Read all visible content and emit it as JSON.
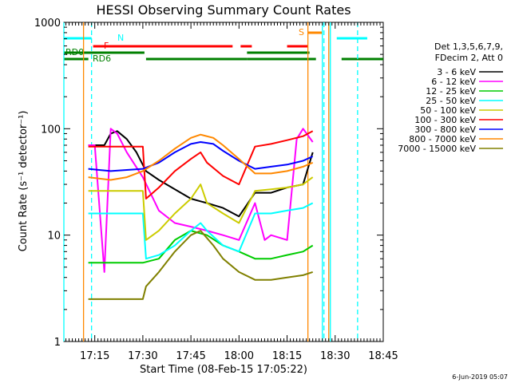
{
  "chart_data": {
    "type": "line",
    "title": "HESSI Observing Summary Count Rates",
    "xlabel": "Start Time (08-Feb-15 17:05:22)",
    "ylabel": "Count Rate (s⁻¹ detector⁻¹)",
    "yscale": "log",
    "ylim": [
      1,
      1000
    ],
    "xlim": [
      "17:05:22",
      "18:45:00"
    ],
    "x_tick_labels": [
      "17:15",
      "17:30",
      "17:45",
      "18:00",
      "18:15",
      "18:30",
      "18:45"
    ],
    "y_tick_labels": [
      "1",
      "10",
      "100",
      "1000"
    ],
    "legend": {
      "header": [
        "Det 1,3,5,6,7,9,",
        "FDecim 2, Att 0"
      ],
      "placement": "right"
    },
    "series": [
      {
        "name": "3 - 6 keV",
        "color": "#000000",
        "x": [
          "17:13:00",
          "17:18:00",
          "17:20:00",
          "17:22:00",
          "17:25:00",
          "17:28:00",
          "17:31:00",
          "17:35:00",
          "17:40:00",
          "17:45:00",
          "17:50:00",
          "17:55:00",
          "18:00:00",
          "18:05:00",
          "18:10:00",
          "18:15:00",
          "18:20:00",
          "18:23:00"
        ],
        "y": [
          70,
          70,
          90,
          95,
          80,
          60,
          40,
          33,
          27,
          22,
          20,
          18,
          15,
          25,
          25,
          28,
          30,
          60
        ]
      },
      {
        "name": "6 - 12 keV",
        "color": "#ff00ff",
        "x": [
          "17:13:00",
          "17:15:00",
          "17:18:00",
          "17:20:00",
          "17:22:00",
          "17:25:00",
          "17:30:00",
          "17:35:00",
          "17:40:00",
          "17:45:00",
          "17:50:00",
          "17:55:00",
          "18:00:00",
          "18:05:00",
          "18:08:00",
          "18:10:00",
          "18:15:00",
          "18:18:00",
          "18:20:00",
          "18:23:00"
        ],
        "y": [
          70,
          70,
          4.5,
          100,
          90,
          60,
          35,
          17,
          13,
          12,
          11,
          10,
          9,
          20,
          9,
          10,
          9,
          80,
          100,
          75
        ]
      },
      {
        "name": "12 - 25 keV",
        "color": "#00cc00",
        "x": [
          "17:13:00",
          "17:20:00",
          "17:30:00",
          "17:35:00",
          "17:40:00",
          "17:45:00",
          "17:50:00",
          "17:55:00",
          "18:00:00",
          "18:05:00",
          "18:10:00",
          "18:15:00",
          "18:20:00",
          "18:23:00"
        ],
        "y": [
          5.5,
          5.5,
          5.5,
          6,
          9,
          11,
          10,
          8,
          7,
          6,
          6,
          6.5,
          7,
          8
        ]
      },
      {
        "name": "25 - 50 keV",
        "color": "#00ffff",
        "x": [
          "17:13:00",
          "17:20:00",
          "17:30:00",
          "17:31:00",
          "17:35:00",
          "17:40:00",
          "17:45:00",
          "17:48:00",
          "17:50:00",
          "17:55:00",
          "18:00:00",
          "18:05:00",
          "18:10:00",
          "18:15:00",
          "18:20:00",
          "18:23:00"
        ],
        "y": [
          16,
          16,
          16,
          6,
          6.5,
          8,
          11,
          13,
          11,
          8,
          7,
          16,
          16,
          17,
          18,
          20
        ]
      },
      {
        "name": "50 - 100 keV",
        "color": "#cccc00",
        "x": [
          "17:13:00",
          "17:20:00",
          "17:30:00",
          "17:31:00",
          "17:35:00",
          "17:40:00",
          "17:45:00",
          "17:48:00",
          "17:50:00",
          "17:55:00",
          "18:00:00",
          "18:05:00",
          "18:10:00",
          "18:15:00",
          "18:20:00",
          "18:23:00"
        ],
        "y": [
          26,
          26,
          26,
          9,
          11,
          16,
          22,
          30,
          20,
          16,
          13,
          26,
          27,
          28,
          30,
          35
        ]
      },
      {
        "name": "100 - 300 keV",
        "color": "#ff0000",
        "x": [
          "17:13:00",
          "17:20:00",
          "17:30:00",
          "17:31:00",
          "17:35:00",
          "17:40:00",
          "17:45:00",
          "17:48:00",
          "17:50:00",
          "17:55:00",
          "18:00:00",
          "18:05:00",
          "18:10:00",
          "18:15:00",
          "18:20:00",
          "18:23:00"
        ],
        "y": [
          68,
          68,
          68,
          22,
          28,
          40,
          52,
          60,
          48,
          36,
          30,
          68,
          72,
          78,
          85,
          95
        ]
      },
      {
        "name": "300 - 800 keV",
        "color": "#0000ff",
        "x": [
          "17:13:00",
          "17:20:00",
          "17:30:00",
          "17:35:00",
          "17:40:00",
          "17:45:00",
          "17:48:00",
          "17:52:00",
          "17:55:00",
          "18:00:00",
          "18:05:00",
          "18:10:00",
          "18:15:00",
          "18:20:00",
          "18:23:00"
        ],
        "y": [
          42,
          40,
          42,
          48,
          60,
          72,
          75,
          72,
          62,
          50,
          42,
          44,
          46,
          50,
          55
        ]
      },
      {
        "name": "800 - 7000 keV",
        "color": "#ff8800",
        "x": [
          "17:13:00",
          "17:20:00",
          "17:25:00",
          "17:30:00",
          "17:35:00",
          "17:40:00",
          "17:45:00",
          "17:48:00",
          "17:52:00",
          "17:55:00",
          "18:00:00",
          "18:05:00",
          "18:10:00",
          "18:15:00",
          "18:20:00",
          "18:23:00"
        ],
        "y": [
          35,
          33,
          35,
          40,
          50,
          65,
          82,
          88,
          82,
          70,
          52,
          38,
          38,
          40,
          44,
          48
        ]
      },
      {
        "name": "7000 - 15000 keV",
        "color": "#808000",
        "x": [
          "17:13:00",
          "17:20:00",
          "17:30:00",
          "17:31:00",
          "17:35:00",
          "17:40:00",
          "17:45:00",
          "17:48:00",
          "17:52:00",
          "17:55:00",
          "18:00:00",
          "18:05:00",
          "18:10:00",
          "18:15:00",
          "18:20:00",
          "18:23:00"
        ],
        "y": [
          2.5,
          2.5,
          2.5,
          3.3,
          4.5,
          7,
          10,
          11,
          8,
          6,
          4.5,
          3.8,
          3.8,
          4,
          4.2,
          4.5
        ]
      }
    ],
    "annotations": {
      "labels": [
        {
          "text": "N",
          "color": "#00ffff"
        },
        {
          "text": "F",
          "color": "#ff0000"
        },
        {
          "text": "S",
          "color": "#ff8800"
        },
        {
          "text": "RD0",
          "color": "#008000"
        },
        {
          "text": "RD6",
          "color": "#008000"
        }
      ],
      "flag_bars": [
        {
          "label": "N",
          "color": "#00ffff",
          "intervals": [
            [
              "17:05:22",
              "17:14:00"
            ],
            [
              "18:30:30",
              "18:40:00"
            ]
          ]
        },
        {
          "label": "F",
          "color": "#ff0000",
          "intervals": [
            [
              "17:14:30",
              "17:58:00"
            ],
            [
              "18:00:30",
              "18:04:00"
            ],
            [
              "18:15:00",
              "18:21:30"
            ]
          ]
        },
        {
          "label": "S",
          "color": "#ff8800",
          "intervals": [
            [
              "18:21:30",
              "18:26:00"
            ]
          ]
        },
        {
          "label": "RD0",
          "color": "#008000",
          "intervals": [
            [
              "17:05:22",
              "17:30:30"
            ],
            [
              "18:02:30",
              "18:22:00"
            ]
          ]
        },
        {
          "label": "RD6",
          "color": "#008000",
          "intervals": [
            [
              "17:05:22",
              "17:13:00"
            ],
            [
              "17:31:00",
              "18:02:30"
            ],
            [
              "18:02:30",
              "18:24:00"
            ],
            [
              "18:32:00",
              "18:45:00"
            ]
          ]
        }
      ],
      "vertical_lines": [
        {
          "time": "17:05:22",
          "color": "#00ffff",
          "style": "solid"
        },
        {
          "time": "17:14:00",
          "color": "#00ffff",
          "style": "dashed"
        },
        {
          "time": "17:11:30",
          "color": "#ff8800",
          "style": "solid"
        },
        {
          "time": "18:21:30",
          "color": "#ff8800",
          "style": "solid"
        },
        {
          "time": "18:26:00",
          "color": "#00ffff",
          "style": "solid"
        },
        {
          "time": "18:26:30",
          "color": "#00ffff",
          "style": "dashed"
        },
        {
          "time": "18:28:00",
          "color": "#ff8800",
          "style": "solid"
        },
        {
          "time": "18:28:30",
          "color": "#00ffff",
          "style": "solid"
        },
        {
          "time": "18:37:00",
          "color": "#00ffff",
          "style": "dashed"
        }
      ]
    },
    "footer_date": "6-Jun-2019 05:07",
    "grid": false
  }
}
